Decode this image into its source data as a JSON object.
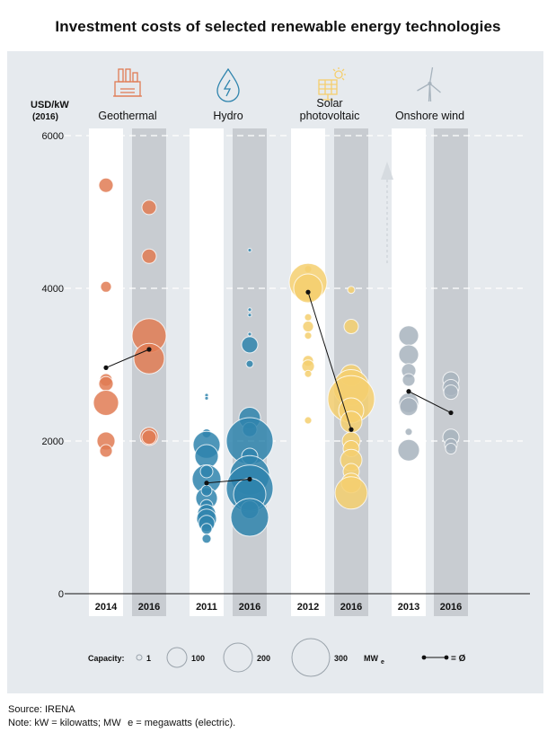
{
  "title": "Investment costs of selected renewable energy technologies",
  "source": "Source: IRENA",
  "note": "Note: kW = kilowatts; MW   e = megawatts (electric).",
  "chart_data": {
    "type": "scatter",
    "ylabel_line1": "USD/kW",
    "ylabel_line2": "(2016)",
    "ylim": [
      0,
      6000
    ],
    "yticks": [
      "0",
      "2000",
      "4000",
      "6000"
    ],
    "ytick_values": [
      0,
      2000,
      4000,
      6000
    ],
    "colors": {
      "Geothermal": "#e07b54",
      "Hydro": "#2f84ad",
      "Solar photovoltaic": "#f5cf6e",
      "Onshore wind": "#a7b3bd"
    },
    "technologies": [
      {
        "name": "Geothermal",
        "label": "Geothermal",
        "icon": "geothermal-plant-icon",
        "years": [
          "2014",
          "2016"
        ],
        "averages": [
          2960,
          3200
        ],
        "points": [
          [
            [
              5350,
              8
            ],
            [
              4020,
              6
            ],
            [
              2800,
              7
            ],
            [
              2750,
              8
            ],
            [
              2500,
              14
            ],
            [
              2000,
              10
            ],
            [
              1870,
              7
            ]
          ],
          [
            [
              5060,
              8
            ],
            [
              4420,
              8
            ],
            [
              3380,
              19
            ],
            [
              3080,
              17
            ],
            [
              2060,
              10
            ],
            [
              2050,
              8
            ]
          ]
        ]
      },
      {
        "name": "Hydro",
        "label": "Hydro",
        "icon": "water-drop-icon",
        "years": [
          "2011",
          "2016"
        ],
        "averages": [
          1450,
          1500
        ],
        "points": [
          [
            [
              2600,
              2
            ],
            [
              2560,
              2
            ],
            [
              2100,
              5
            ],
            [
              1950,
              15
            ],
            [
              1800,
              13
            ],
            [
              1500,
              16
            ],
            [
              1250,
              12
            ],
            [
              1150,
              7
            ],
            [
              1050,
              10
            ],
            [
              980,
              11
            ],
            [
              920,
              9
            ],
            [
              850,
              6
            ],
            [
              720,
              5
            ],
            [
              1600,
              7
            ],
            [
              1350,
              6
            ]
          ],
          [
            [
              4500,
              2
            ],
            [
              3720,
              2
            ],
            [
              3650,
              2
            ],
            [
              3400,
              2
            ],
            [
              3260,
              9
            ],
            [
              3010,
              4
            ],
            [
              2300,
              12
            ],
            [
              2150,
              8
            ],
            [
              2000,
              26
            ],
            [
              1800,
              9
            ],
            [
              1550,
              22
            ],
            [
              1380,
              26
            ],
            [
              1300,
              18
            ],
            [
              1100,
              10
            ],
            [
              1000,
              21
            ]
          ]
        ]
      },
      {
        "name": "Solar photovoltaic",
        "label_line1": "Solar",
        "label_line2": "photovoltaic",
        "icon": "solar-panel-icon",
        "years": [
          "2012",
          "2016"
        ],
        "averages": [
          3950,
          2150
        ],
        "points": [
          [
            [
              4250,
              4
            ],
            [
              4080,
              21
            ],
            [
              4000,
              16
            ],
            [
              3620,
              4
            ],
            [
              3500,
              6
            ],
            [
              3380,
              4
            ],
            [
              3050,
              6
            ],
            [
              2980,
              7
            ],
            [
              2880,
              4
            ],
            [
              2270,
              4
            ]
          ],
          [
            [
              3980,
              4
            ],
            [
              3500,
              8
            ],
            [
              2860,
              12
            ],
            [
              2700,
              20
            ],
            [
              2550,
              26
            ],
            [
              2400,
              14
            ],
            [
              2250,
              12
            ],
            [
              2000,
              10
            ],
            [
              1900,
              9
            ],
            [
              1750,
              12
            ],
            [
              1600,
              9
            ],
            [
              1450,
              11
            ],
            [
              1320,
              18
            ]
          ]
        ]
      },
      {
        "name": "Onshore wind",
        "label": "Onshore wind",
        "icon": "wind-turbine-icon",
        "years": [
          "2013",
          "2016"
        ],
        "averages": [
          2650,
          2370
        ],
        "points": [
          [
            [
              3380,
              11
            ],
            [
              3130,
              11
            ],
            [
              2920,
              8
            ],
            [
              2800,
              7
            ],
            [
              2500,
              11
            ],
            [
              2450,
              10
            ],
            [
              2120,
              4
            ],
            [
              1880,
              12
            ]
          ],
          [
            [
              2800,
              9
            ],
            [
              2700,
              9
            ],
            [
              2640,
              8
            ],
            [
              2050,
              9
            ],
            [
              1950,
              7
            ],
            [
              1900,
              6
            ]
          ]
        ]
      }
    ],
    "legend": {
      "label": "Capacity:",
      "sizes": [
        {
          "label": "1",
          "r": 3
        },
        {
          "label": "100",
          "r": 11
        },
        {
          "label": "200",
          "r": 16
        },
        {
          "label": "300",
          "r": 21
        }
      ],
      "unit": "MW",
      "unit_sub": "e",
      "average_label": "= Ø"
    }
  }
}
